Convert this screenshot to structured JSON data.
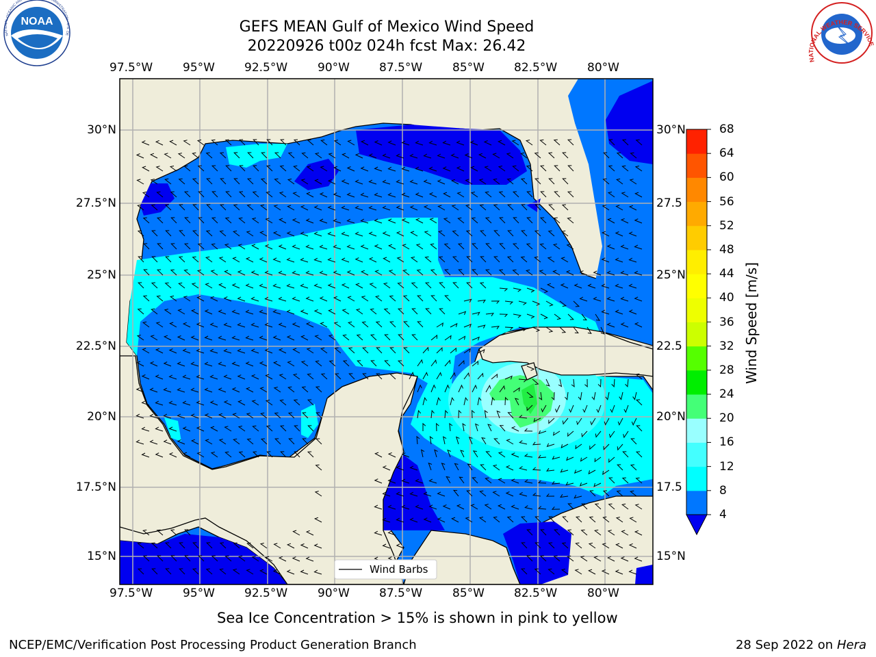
{
  "header": {
    "title_line1": "GEFS MEAN Gulf of Mexico Wind Speed",
    "title_line2": "20220926 t00z 024h fcst   Max: 26.42"
  },
  "logos": {
    "noaa_text": "NOAA",
    "noaa_ring": "NATIONAL OCEANIC AND ATMOSPHERIC ADMINISTRATION · U.S. DEPARTMENT OF COMMERCE",
    "nws_ring": "NATIONAL WEATHER SERVICE"
  },
  "map": {
    "lon_labels": [
      "97.5°W",
      "95°W",
      "92.5°W",
      "90°W",
      "87.5°W",
      "85°W",
      "82.5°W",
      "80°W"
    ],
    "lat_labels_left": [
      "30°N",
      "27.5°N",
      "25°N",
      "22.5°N",
      "20°N",
      "17.5°N",
      "15°N"
    ],
    "lat_labels_right": [
      "30°N",
      "27.5",
      "25°N",
      "22.5",
      "20°N",
      "17.5",
      "15°N"
    ],
    "legend_label": "Wind Barbs",
    "colors": {
      "land": "#efedda",
      "blue4": "#0000f0",
      "blue8": "#0077ff",
      "cyan12": "#00ffff",
      "cyan16": "#44ffff",
      "cyan20": "#99ffff",
      "green24": "#44ff77"
    }
  },
  "colorbar": {
    "label": "Wind Speed [m/s]",
    "ticks": [
      "4",
      "8",
      "12",
      "16",
      "20",
      "24",
      "28",
      "32",
      "36",
      "40",
      "44",
      "48",
      "52",
      "56",
      "60",
      "64",
      "68"
    ],
    "colors": [
      "#0077ff",
      "#00ffff",
      "#44ffff",
      "#99ffff",
      "#44ff77",
      "#00ee00",
      "#55ff00",
      "#ccff00",
      "#eeff00",
      "#ffff00",
      "#ffee00",
      "#ffcc00",
      "#ffaa00",
      "#ff8800",
      "#ff5500",
      "#ff2200",
      "#ff0000"
    ],
    "extend_color": "#0000f0"
  },
  "footer": {
    "sea_ice_note": "Sea Ice Concentration > 15% is shown in pink to yellow",
    "credit": "NCEP/EMC/Verification Post Processing Product Generation Branch",
    "date": "28 Sep 2022 on",
    "machine": "Hera"
  }
}
